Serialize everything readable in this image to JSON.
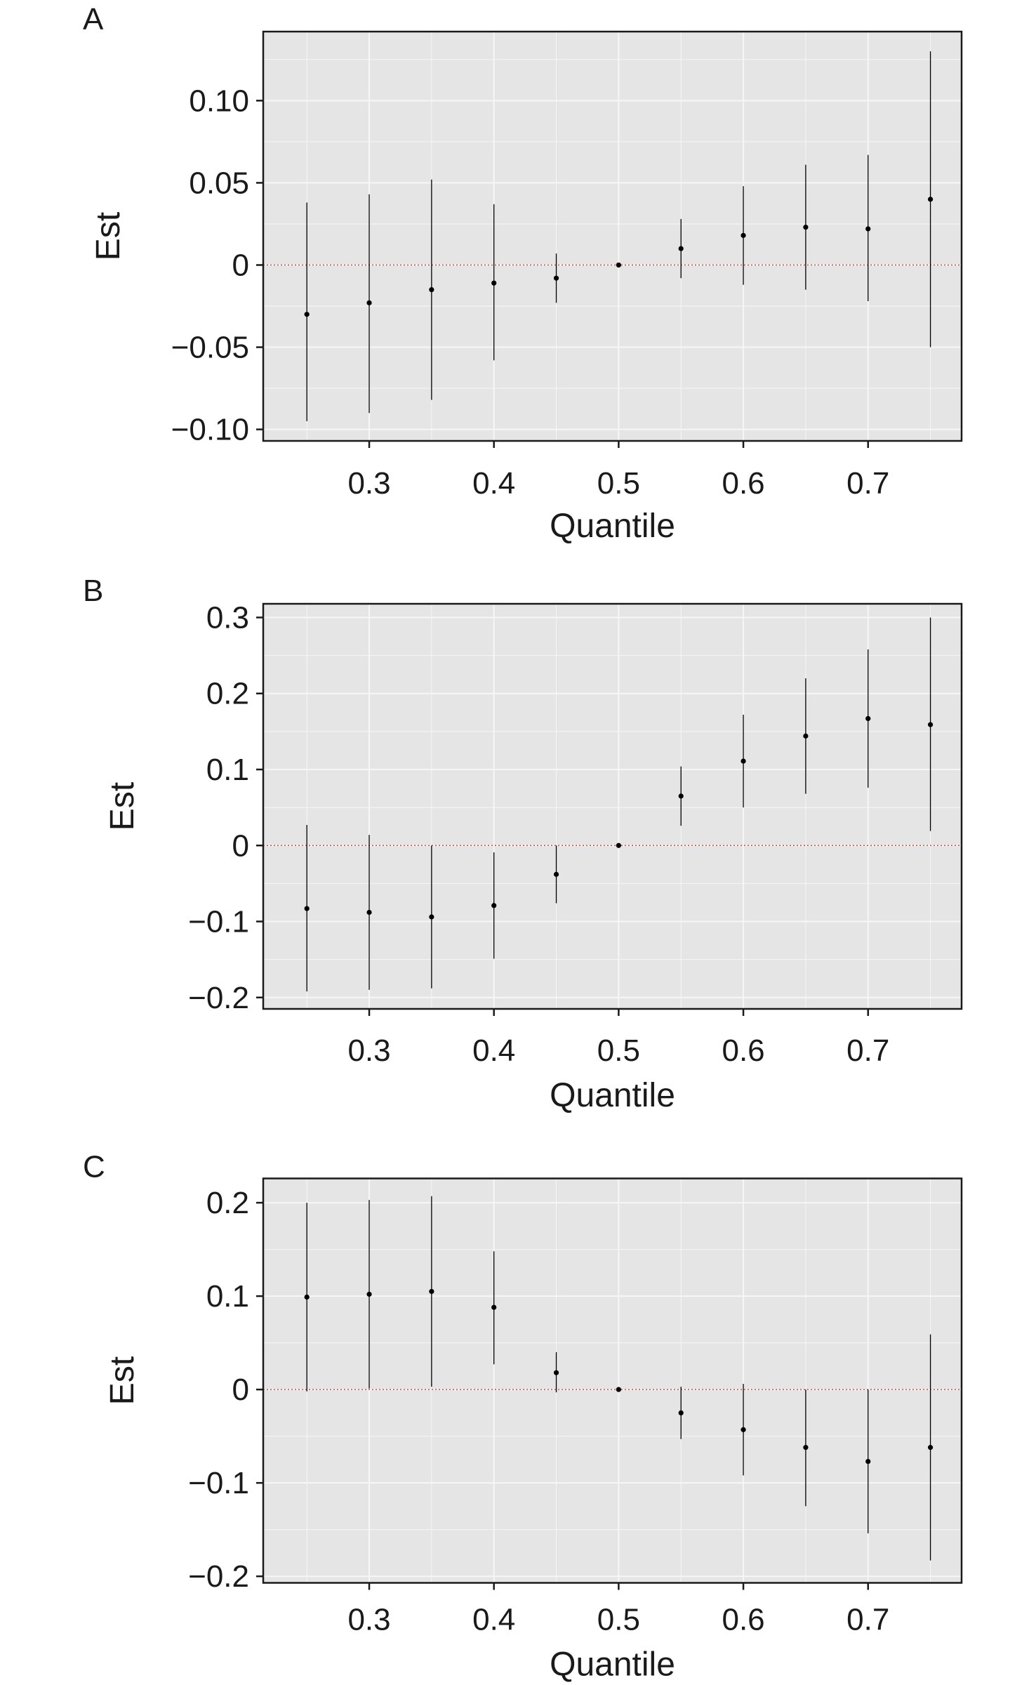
{
  "chart_data": [
    {
      "panel": "A",
      "type": "scatter",
      "xlabel": "Quantile",
      "ylabel": "Est",
      "xlim": [
        0.215,
        0.775
      ],
      "ylim": [
        -0.107,
        0.142
      ],
      "x_ticks": [
        0.3,
        0.4,
        0.5,
        0.6,
        0.7
      ],
      "x_tick_labels": [
        "0.3",
        "0.4",
        "0.5",
        "0.6",
        "0.7"
      ],
      "y_ticks": [
        -0.1,
        -0.05,
        0,
        0.05,
        0.1
      ],
      "y_tick_labels": [
        "−0.10",
        "−0.05",
        "0",
        "0.05",
        "0.10"
      ],
      "reference_line": 0,
      "points": [
        {
          "x": 0.25,
          "est": -0.03,
          "lower": -0.095,
          "upper": 0.038
        },
        {
          "x": 0.3,
          "est": -0.023,
          "lower": -0.09,
          "upper": 0.043
        },
        {
          "x": 0.35,
          "est": -0.015,
          "lower": -0.082,
          "upper": 0.052
        },
        {
          "x": 0.4,
          "est": -0.011,
          "lower": -0.058,
          "upper": 0.037
        },
        {
          "x": 0.45,
          "est": -0.008,
          "lower": -0.023,
          "upper": 0.007
        },
        {
          "x": 0.5,
          "est": 0.0,
          "lower": 0.0,
          "upper": 0.0
        },
        {
          "x": 0.55,
          "est": 0.01,
          "lower": -0.008,
          "upper": 0.028
        },
        {
          "x": 0.6,
          "est": 0.018,
          "lower": -0.012,
          "upper": 0.048
        },
        {
          "x": 0.65,
          "est": 0.023,
          "lower": -0.015,
          "upper": 0.061
        },
        {
          "x": 0.7,
          "est": 0.022,
          "lower": -0.022,
          "upper": 0.067
        },
        {
          "x": 0.75,
          "est": 0.04,
          "lower": -0.05,
          "upper": 0.13
        }
      ]
    },
    {
      "panel": "B",
      "type": "scatter",
      "xlabel": "Quantile",
      "ylabel": "Est",
      "xlim": [
        0.215,
        0.775
      ],
      "ylim": [
        -0.215,
        0.318
      ],
      "x_ticks": [
        0.3,
        0.4,
        0.5,
        0.6,
        0.7
      ],
      "x_tick_labels": [
        "0.3",
        "0.4",
        "0.5",
        "0.6",
        "0.7"
      ],
      "y_ticks": [
        -0.2,
        -0.1,
        0,
        0.1,
        0.2,
        0.3
      ],
      "y_tick_labels": [
        "−0.2",
        "−0.1",
        "0",
        "0.1",
        "0.2",
        "0.3"
      ],
      "reference_line": 0,
      "points": [
        {
          "x": 0.25,
          "est": -0.083,
          "lower": -0.192,
          "upper": 0.027
        },
        {
          "x": 0.3,
          "est": -0.088,
          "lower": -0.19,
          "upper": 0.014
        },
        {
          "x": 0.35,
          "est": -0.094,
          "lower": -0.188,
          "upper": 0.0
        },
        {
          "x": 0.4,
          "est": -0.079,
          "lower": -0.149,
          "upper": -0.009
        },
        {
          "x": 0.45,
          "est": -0.038,
          "lower": -0.076,
          "upper": 0.0
        },
        {
          "x": 0.5,
          "est": 0.0,
          "lower": 0.0,
          "upper": 0.0
        },
        {
          "x": 0.55,
          "est": 0.065,
          "lower": 0.026,
          "upper": 0.104
        },
        {
          "x": 0.6,
          "est": 0.111,
          "lower": 0.05,
          "upper": 0.172
        },
        {
          "x": 0.65,
          "est": 0.144,
          "lower": 0.068,
          "upper": 0.22
        },
        {
          "x": 0.7,
          "est": 0.167,
          "lower": 0.076,
          "upper": 0.258
        },
        {
          "x": 0.75,
          "est": 0.159,
          "lower": 0.019,
          "upper": 0.3
        }
      ]
    },
    {
      "panel": "C",
      "type": "scatter",
      "xlabel": "Quantile",
      "ylabel": "Est",
      "xlim": [
        0.215,
        0.775
      ],
      "ylim": [
        -0.207,
        0.226
      ],
      "x_ticks": [
        0.3,
        0.4,
        0.5,
        0.6,
        0.7
      ],
      "x_tick_labels": [
        "0.3",
        "0.4",
        "0.5",
        "0.6",
        "0.7"
      ],
      "y_ticks": [
        -0.2,
        -0.1,
        0,
        0.1,
        0.2
      ],
      "y_tick_labels": [
        "−0.2",
        "−0.1",
        "0",
        "0.1",
        "0.2"
      ],
      "reference_line": 0,
      "points": [
        {
          "x": 0.25,
          "est": 0.099,
          "lower": -0.002,
          "upper": 0.2
        },
        {
          "x": 0.3,
          "est": 0.102,
          "lower": 0.001,
          "upper": 0.203
        },
        {
          "x": 0.35,
          "est": 0.105,
          "lower": 0.003,
          "upper": 0.207
        },
        {
          "x": 0.4,
          "est": 0.088,
          "lower": 0.027,
          "upper": 0.148
        },
        {
          "x": 0.45,
          "est": 0.018,
          "lower": -0.003,
          "upper": 0.04
        },
        {
          "x": 0.5,
          "est": 0.0,
          "lower": 0.0,
          "upper": 0.0
        },
        {
          "x": 0.55,
          "est": -0.025,
          "lower": -0.053,
          "upper": 0.003
        },
        {
          "x": 0.6,
          "est": -0.043,
          "lower": -0.092,
          "upper": 0.006
        },
        {
          "x": 0.65,
          "est": -0.062,
          "lower": -0.125,
          "upper": 0.0
        },
        {
          "x": 0.7,
          "est": -0.077,
          "lower": -0.154,
          "upper": 0.0
        },
        {
          "x": 0.75,
          "est": -0.062,
          "lower": -0.183,
          "upper": 0.059
        }
      ]
    }
  ],
  "style": {
    "panel_background": "#e5e5e5",
    "grid_color": "#f6f6f6",
    "reference_line_color": "#c0504d",
    "point_color": "#000000",
    "axis_color": "#1a1a1a"
  }
}
